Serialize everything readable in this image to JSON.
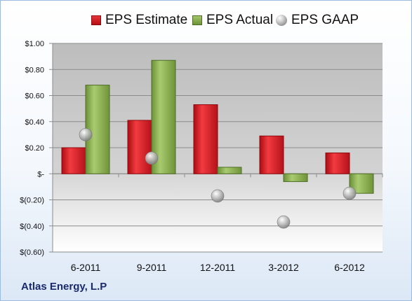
{
  "company": "Atlas Energy, L.P",
  "legend": {
    "estimate": "EPS Estimate",
    "actual": "EPS Actual",
    "gaap": "EPS GAAP"
  },
  "chart_data": {
    "type": "bar",
    "categories": [
      "6-2011",
      "9-2011",
      "12-2011",
      "3-2012",
      "6-2012"
    ],
    "series": [
      {
        "name": "EPS Estimate",
        "values": [
          0.2,
          0.41,
          0.53,
          0.29,
          0.16
        ],
        "color": "#d7191f"
      },
      {
        "name": "EPS Actual",
        "values": [
          0.68,
          0.87,
          0.05,
          -0.06,
          -0.15
        ],
        "color": "#8db04f"
      },
      {
        "name": "EPS GAAP",
        "values": [
          0.3,
          0.12,
          -0.17,
          -0.37,
          -0.15
        ],
        "color": "#a6a6a6",
        "marker": "sphere"
      }
    ],
    "ylim": [
      -0.6,
      1.0
    ],
    "yticks": [
      1.0,
      0.8,
      0.6,
      0.4,
      0.2,
      0,
      -0.2,
      -0.4,
      -0.6
    ],
    "ytick_labels": [
      "$1.00",
      "$0.80",
      "$0.60",
      "$0.40",
      "$0.20",
      "$-",
      "$(0.20)",
      "$(0.40)",
      "$(0.60)"
    ],
    "grid": true,
    "legend_position": "top"
  }
}
